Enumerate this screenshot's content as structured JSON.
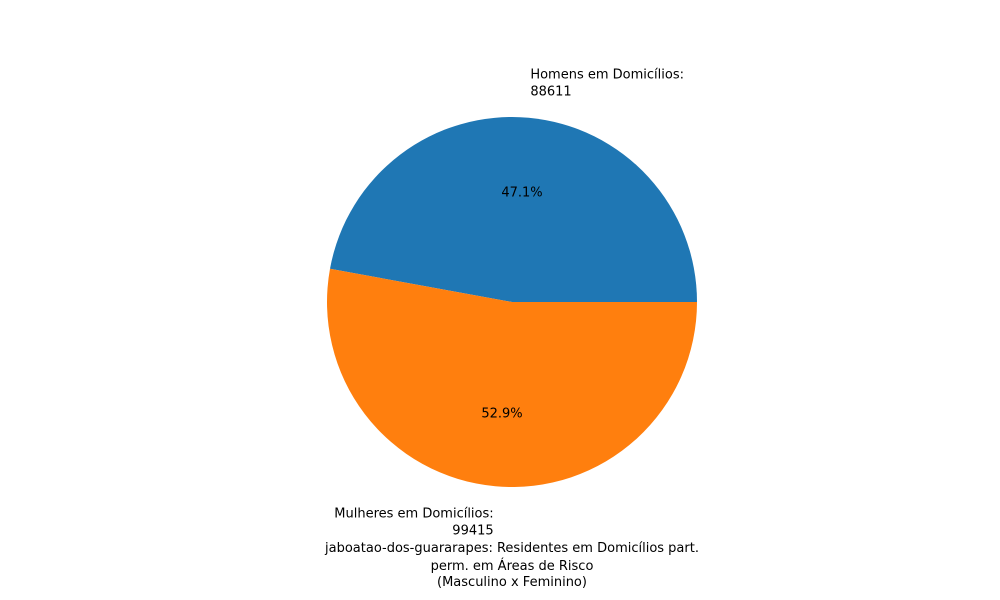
{
  "chart_data": {
    "type": "pie",
    "title_lines": [
      "jaboatao-dos-guararapes: Residentes em Domicílios part.",
      "perm. em Áreas de Risco",
      "(Masculino x Feminino)"
    ],
    "slices": [
      {
        "label_lines": [
          "Homens em Domicílios:",
          "88611"
        ],
        "value": 88611,
        "percent_label": "47.1%",
        "color": "#1f77b4"
      },
      {
        "label_lines": [
          "Mulheres em Domicílios:",
          "99415"
        ],
        "value": 99415,
        "percent_label": "52.9%",
        "color": "#ff7f0e"
      }
    ],
    "start_angle_deg": 0,
    "direction": "counterclockwise",
    "legend": "none"
  }
}
